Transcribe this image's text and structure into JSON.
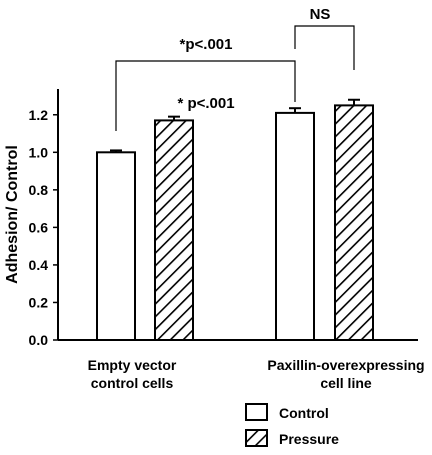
{
  "chart_data": {
    "type": "bar",
    "ylabel": "Adhesion/ Control",
    "ylim": [
      0,
      1.4
    ],
    "yticks": [
      "0.0",
      "0.2",
      "0.4",
      "0.6",
      "0.8",
      "1.0",
      "1.2"
    ],
    "categories": [
      {
        "line1": "Empty vector",
        "line2": "control cells"
      },
      {
        "line1": "Paxillin-overexpressing",
        "line2": "cell line"
      }
    ],
    "series": [
      {
        "name": "Control",
        "pattern": "open",
        "values": [
          1.0,
          1.21
        ],
        "errors": [
          0.01,
          0.025
        ]
      },
      {
        "name": "Pressure",
        "pattern": "hatched",
        "values": [
          1.17,
          1.25
        ],
        "errors": [
          0.02,
          0.03
        ]
      }
    ],
    "annotations": [
      {
        "text": "*p<.001",
        "kind": "between-groups-control"
      },
      {
        "text": "* p<.001",
        "kind": "within-group-1"
      },
      {
        "text": "NS",
        "kind": "within-group-2"
      }
    ],
    "grid": false,
    "legend_position": "bottom-right"
  }
}
